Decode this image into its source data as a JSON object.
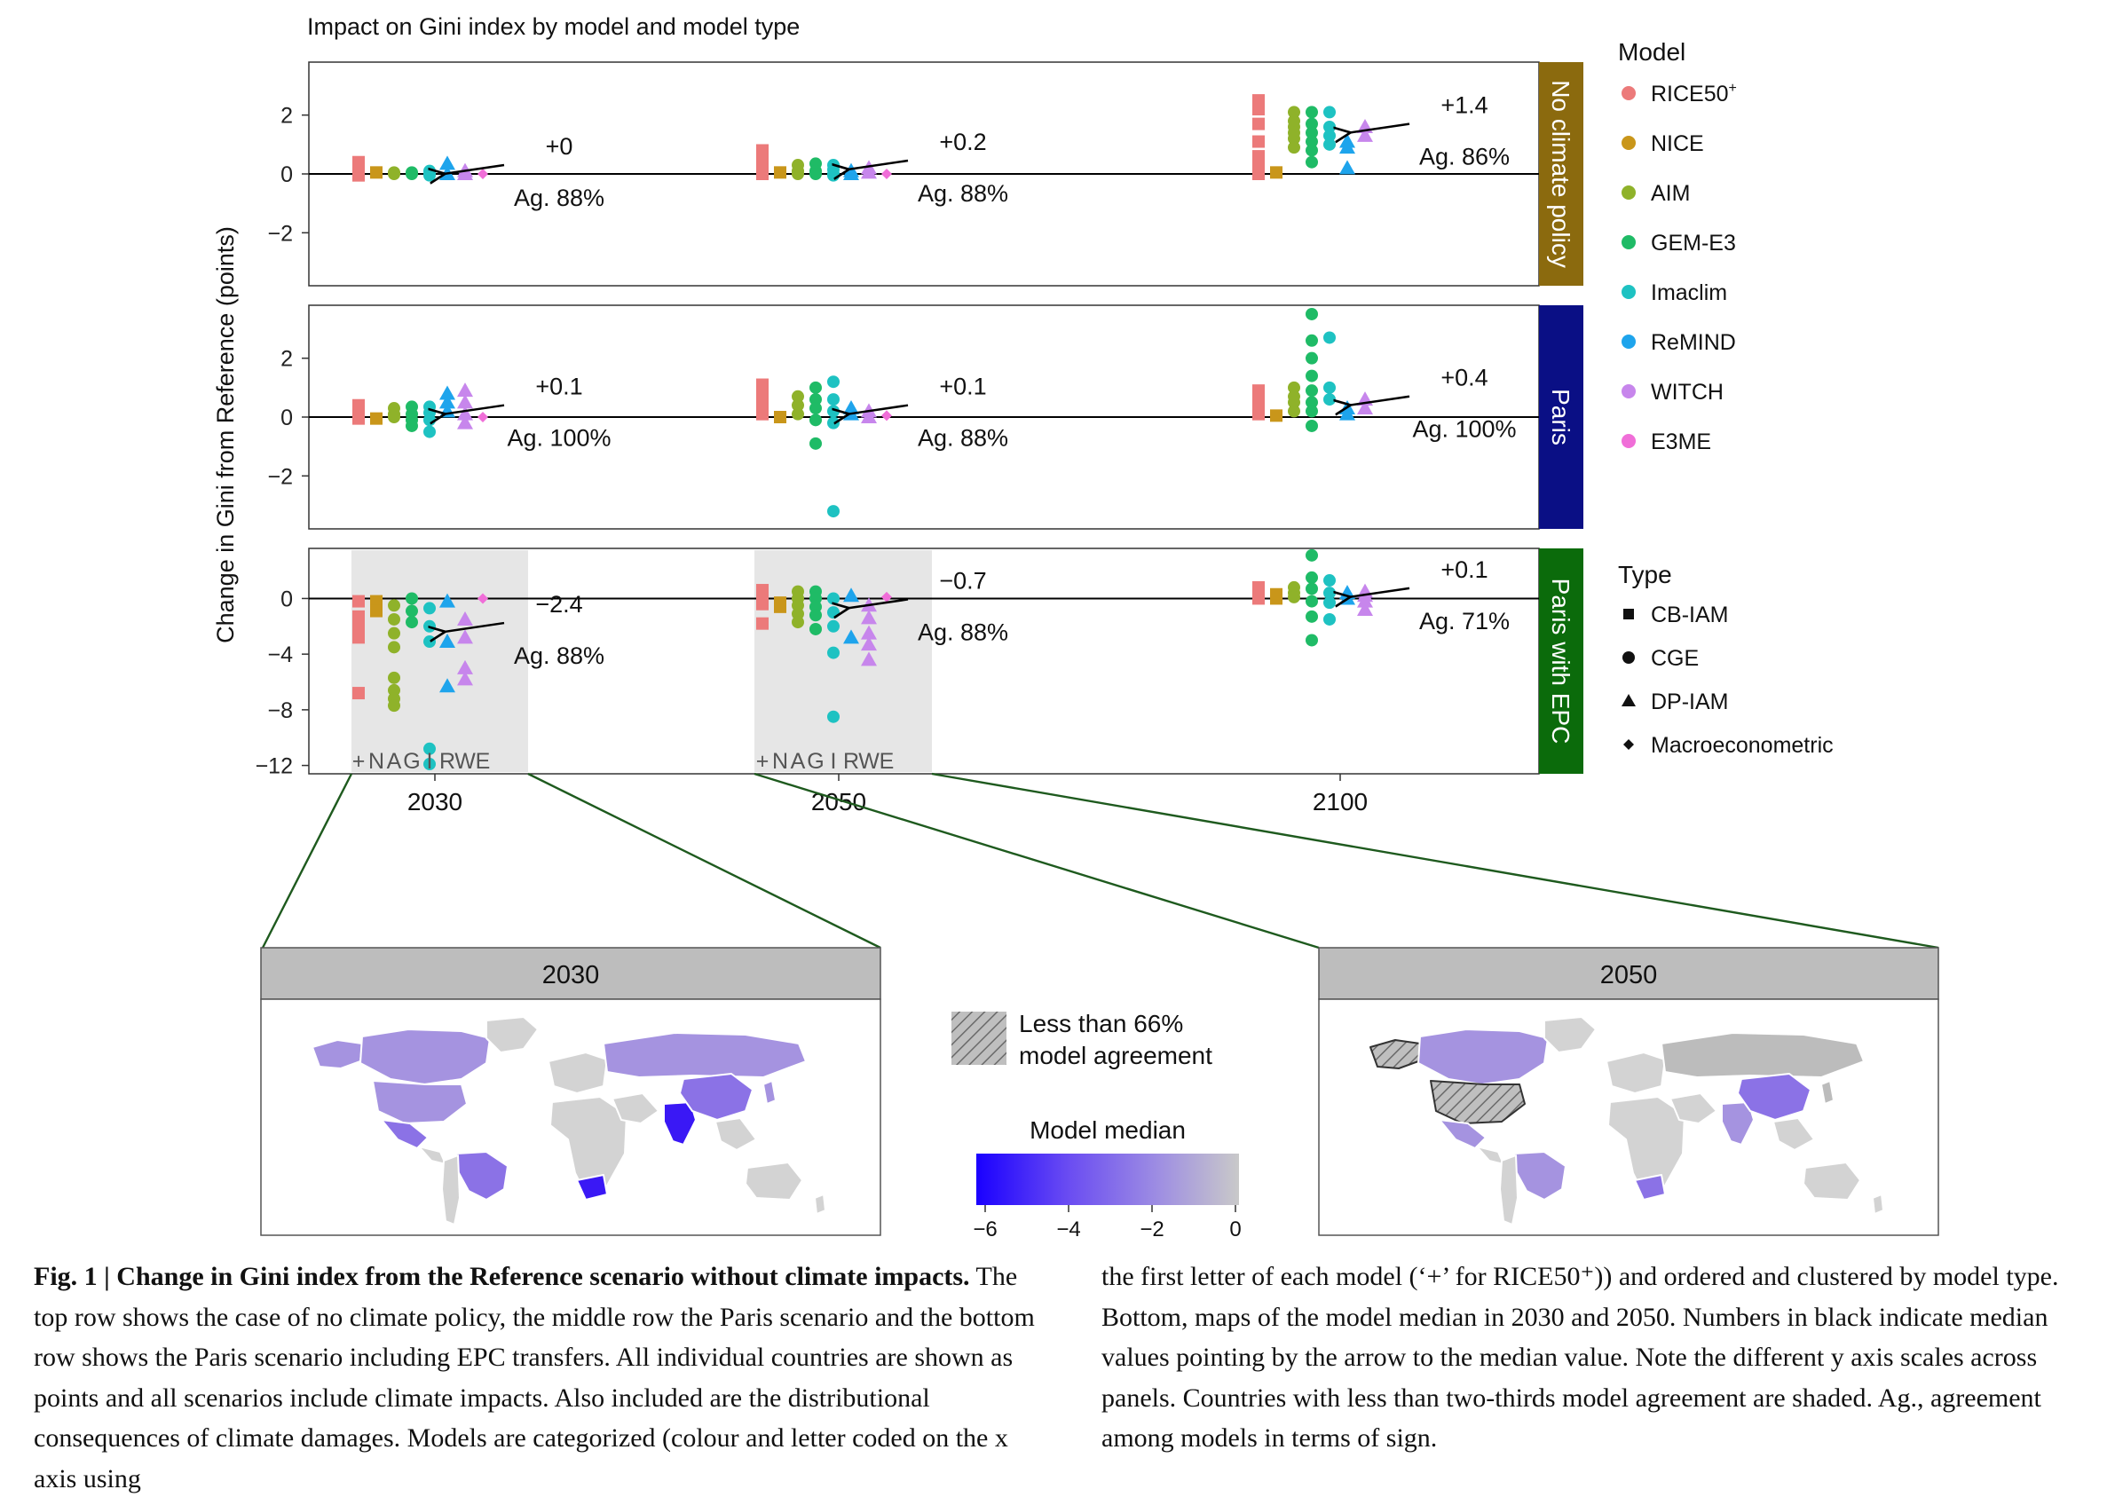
{
  "chart_data": {
    "type": "scatter",
    "title": "Impact on Gini index by model and model type",
    "ylabel": "Change in Gini from Reference (points)",
    "x_categories": [
      "2030",
      "2050",
      "2100"
    ],
    "model_letters": "+NAGIRWE",
    "models": [
      {
        "name": "RICE50",
        "sup": "+",
        "color": "#ec7a7a",
        "type": "CB-IAM"
      },
      {
        "name": "NICE",
        "color": "#c9961a",
        "type": "CB-IAM"
      },
      {
        "name": "AIM",
        "color": "#8fb22a",
        "type": "CGE"
      },
      {
        "name": "GEM-E3",
        "color": "#1fbb66",
        "type": "CGE"
      },
      {
        "name": "Imaclim",
        "color": "#1ec2c2",
        "type": "CGE"
      },
      {
        "name": "ReMIND",
        "color": "#1ea4ec",
        "type": "DP-IAM"
      },
      {
        "name": "WITCH",
        "color": "#c786ec",
        "type": "DP-IAM"
      },
      {
        "name": "E3ME",
        "color": "#f06ed8",
        "type": "Macroeconometric"
      }
    ],
    "types": [
      "CB-IAM",
      "CGE",
      "DP-IAM",
      "Macroeconometric"
    ],
    "legend_model_title": "Model",
    "legend_type_title": "Type",
    "panels": [
      {
        "label": "No climate policy",
        "strip_color": "#8b6a0e",
        "ylim": [
          -3.8,
          3.8
        ],
        "yticks": [
          2,
          0,
          -2
        ],
        "medians": [
          {
            "year": "2030",
            "median_label": "+0",
            "agreement": "Ag. 88%",
            "median": 0.0
          },
          {
            "year": "2050",
            "median_label": "+0.2",
            "agreement": "Ag. 88%",
            "median": 0.15
          },
          {
            "year": "2100",
            "median_label": "+1.4",
            "agreement": "Ag. 86%",
            "median": 1.4
          }
        ],
        "points": {
          "2030": [
            [
              0.4,
              0.2,
              0.0,
              -0.05
            ],
            [
              0.05
            ],
            [
              0.05,
              0.0
            ],
            [
              0.05,
              0.0
            ],
            [
              0.1,
              0.0,
              -0.05
            ],
            [
              0.35,
              0.0
            ],
            [
              0.1,
              0.0
            ],
            [
              0.0
            ]
          ],
          "2050": [
            [
              0.8,
              0.5,
              0.3,
              0.1,
              0.0
            ],
            [
              0.05
            ],
            [
              0.3,
              0.1,
              0.0
            ],
            [
              0.35,
              0.1,
              0.0
            ],
            [
              0.3,
              0.15,
              0.0,
              -0.05
            ],
            [
              0.1,
              0.0
            ],
            [
              0.2,
              0.05
            ],
            [
              0.0
            ]
          ],
          "2100": [
            [
              2.5,
              2.2,
              1.7,
              1.1,
              0.6,
              0.3,
              0.0
            ],
            [
              0.05
            ],
            [
              2.1,
              1.8,
              1.6,
              1.4,
              1.2,
              0.9
            ],
            [
              2.1,
              1.7,
              1.4,
              1.1,
              0.8,
              0.4
            ],
            [
              2.1,
              1.6,
              1.3,
              1.0
            ],
            [
              1.1,
              0.9,
              0.2
            ],
            [
              1.6,
              1.3
            ],
            []
          ]
        }
      },
      {
        "label": "Paris",
        "strip_color": "#0a0f85",
        "ylim": [
          -3.8,
          3.8
        ],
        "yticks": [
          2,
          0,
          -2
        ],
        "medians": [
          {
            "year": "2030",
            "median_label": "+0.1",
            "agreement": "Ag. 100%",
            "median": 0.1
          },
          {
            "year": "2050",
            "median_label": "+0.1",
            "agreement": "Ag. 88%",
            "median": 0.1
          },
          {
            "year": "2100",
            "median_label": "+0.4",
            "agreement": "Ag. 100%",
            "median": 0.4
          }
        ],
        "points": {
          "2030": [
            [
              0.4,
              0.2,
              0.05,
              -0.05
            ],
            [
              -0.05
            ],
            [
              0.3,
              0.1,
              0.0
            ],
            [
              0.35,
              0.1,
              -0.1,
              -0.3
            ],
            [
              0.35,
              0.15,
              -0.1,
              -0.5
            ],
            [
              0.8,
              0.5,
              0.2
            ],
            [
              0.9,
              0.5,
              0.1,
              -0.2
            ],
            [
              0.0
            ]
          ],
          "2050": [
            [
              1.1,
              0.8,
              0.4,
              0.1
            ],
            [
              0.0
            ],
            [
              0.7,
              0.4,
              0.1
            ],
            [
              1.0,
              0.6,
              0.3,
              -0.1,
              -0.9
            ],
            [
              1.2,
              0.6,
              0.2,
              -0.2,
              -3.2
            ],
            [
              0.3,
              0.1
            ],
            [
              0.2,
              0.0
            ],
            [
              0.05
            ]
          ],
          "2100": [
            [
              0.9,
              0.6,
              0.3,
              0.1
            ],
            [
              0.05
            ],
            [
              1.0,
              0.7,
              0.5,
              0.2
            ],
            [
              3.5,
              2.6,
              2.0,
              1.4,
              0.9,
              0.5,
              0.2,
              -0.3
            ],
            [
              2.7,
              1.0,
              0.6
            ],
            [
              0.3,
              0.1
            ],
            [
              0.6,
              0.3
            ],
            []
          ]
        }
      },
      {
        "label": "Paris with EPC",
        "strip_color": "#0b6b0b",
        "ylim": [
          -12.6,
          3.6
        ],
        "yticks": [
          0,
          -4,
          -8,
          -12
        ],
        "medians": [
          {
            "year": "2030",
            "median_label": "−2.4",
            "agreement": "Ag. 88%",
            "median": -2.4
          },
          {
            "year": "2050",
            "median_label": "−0.7",
            "agreement": "Ag. 88%",
            "median": -0.7
          },
          {
            "year": "2100",
            "median_label": "+0.1",
            "agreement": "Ag. 71%",
            "median": 0.1
          }
        ],
        "points": {
          "2030": [
            [
              -0.2,
              -1.3,
              -2.0,
              -2.8,
              -6.8
            ],
            [
              -0.2,
              -0.9
            ],
            [
              -0.5,
              -1.5,
              -2.5,
              -3.5,
              -5.7,
              -6.6,
              -7.2,
              -7.7
            ],
            [
              0.0,
              -0.9,
              -1.7
            ],
            [
              -0.7,
              -2.0,
              -3.1,
              -10.8,
              -11.9
            ],
            [
              -0.2,
              -3.1,
              -6.3
            ],
            [
              -1.5,
              -2.8,
              -5.0,
              -5.8
            ],
            [
              0.0
            ]
          ],
          "2050": [
            [
              0.6,
              0.2,
              -0.4,
              -1.8
            ],
            [
              -0.3,
              -0.6
            ],
            [
              0.5,
              0.0,
              -0.5,
              -1.1,
              -1.7
            ],
            [
              0.5,
              0.0,
              -0.6,
              -1.2,
              -2.2
            ],
            [
              0.0,
              -1.0,
              -2.0,
              -3.9,
              -8.5
            ],
            [
              0.2,
              -2.8
            ],
            [
              -0.5,
              -1.4,
              -2.5,
              -3.3,
              -4.4
            ],
            [
              0.1
            ]
          ],
          "2100": [
            [
              0.8,
              0.3,
              0.0
            ],
            [
              0.0,
              0.3
            ],
            [
              0.8,
              0.4,
              0.1
            ],
            [
              3.1,
              1.5,
              0.7,
              -0.2,
              -1.3,
              -3.0
            ],
            [
              1.3,
              0.4,
              -0.3,
              -1.5
            ],
            [
              0.4,
              0.0
            ],
            [
              0.5,
              0.2,
              -0.2,
              -0.8
            ],
            []
          ]
        }
      }
    ]
  },
  "maps": {
    "map_2030": {
      "title": "2030"
    },
    "map_2050": {
      "title": "2050"
    },
    "hatch_legend": "Less than 66%\nmodel agreement",
    "colorbar_title": "Model median",
    "colorbar_ticks": [
      "−6",
      "−4",
      "−2",
      "0"
    ]
  },
  "caption": {
    "fig_label": "Fig. 1",
    "fig_title": "Change in Gini index from the Reference scenario without climate impacts.",
    "text_left": "The top row shows the case of no climate policy, the middle row the Paris scenario and the bottom row shows the Paris scenario including EPC transfers. All individual countries are shown as points and all scenarios include climate impacts. Also included are the distributional consequences of climate damages. Models are categorized (colour and letter coded on the x axis using",
    "text_right": "the first letter of each model (‘+’ for RICE50⁺)) and ordered and clustered by model type. Bottom, maps of the model median in 2030 and 2050. Numbers in black indicate median values pointing by the arrow to the median value. Note the different y axis scales across panels. Countries with less than two-thirds model agreement are shaded. Ag., agreement among models in terms of sign."
  },
  "colors": {
    "map_base": "#d3d3d3",
    "map_light": "#a593e0",
    "map_mid": "#8b72e6",
    "map_dark": "#3a18f5",
    "hatch_gray": "#bcbcbc"
  }
}
